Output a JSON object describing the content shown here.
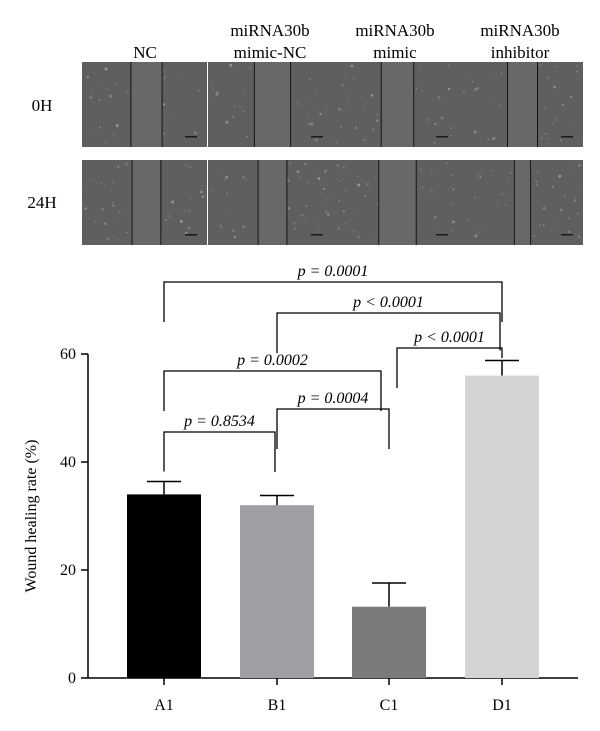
{
  "figure": {
    "micrographs": {
      "columns": [
        [
          "NC"
        ],
        [
          "miRNA30b",
          "mimic-NC"
        ],
        [
          "miRNA30b",
          "mimic"
        ],
        [
          "miRNA30b",
          "inhibitor"
        ]
      ],
      "rows": [
        "0H",
        "24H"
      ],
      "wound_gap_fraction": [
        [
          0.25,
          0.29,
          0.26,
          0.24
        ],
        [
          0.23,
          0.23,
          0.3,
          0.13
        ]
      ]
    }
  },
  "chart_data": {
    "type": "bar",
    "categories": [
      "A1",
      "B1",
      "C1",
      "D1"
    ],
    "values": [
      34.0,
      32.0,
      13.2,
      56.0
    ],
    "errors": [
      2.4,
      1.8,
      4.4,
      2.8
    ],
    "bar_colors": [
      "#000000",
      "#a0a0a4",
      "#7a7a7a",
      "#d4d4d4"
    ],
    "ylabel": "Wound healing rate (%)",
    "ylim": [
      0,
      60
    ],
    "yticks": [
      0,
      20,
      40,
      60
    ],
    "grid": false,
    "comparisons": [
      {
        "from": 0,
        "to": 1,
        "label": "p = 0.8534"
      },
      {
        "from": 1,
        "to": 2,
        "label": "p = 0.0004"
      },
      {
        "from": 0,
        "to": 2,
        "label": "p = 0.0002"
      },
      {
        "from": 2,
        "to": 3,
        "label": "p < 0.0001"
      },
      {
        "from": 1,
        "to": 3,
        "label": "p < 0.0001"
      },
      {
        "from": 0,
        "to": 3,
        "label": "p = 0.0001"
      }
    ]
  }
}
